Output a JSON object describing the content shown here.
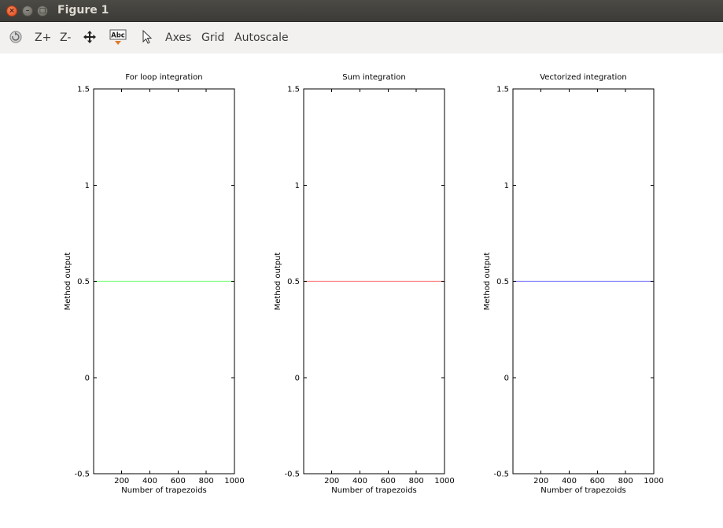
{
  "window": {
    "title": "Figure 1",
    "close_glyph": "×",
    "minimize_glyph": "–",
    "maximize_glyph": "□"
  },
  "toolbar": {
    "rotate_icon": "rotate-icon",
    "zoom_in_label": "Z+",
    "zoom_out_label": "Z-",
    "pan_icon": "pan-icon",
    "text_icon_label": "Abc",
    "select_icon": "pointer-icon",
    "axes_label": "Axes",
    "grid_label": "Grid",
    "autoscale_label": "Autoscale"
  },
  "chart_data": [
    {
      "type": "line",
      "title": "For loop integration",
      "xlabel": "Number of trapezoids",
      "ylabel": "Method output",
      "xlim": [
        1,
        1000
      ],
      "ylim": [
        -0.5,
        1.5
      ],
      "xticks": [
        200,
        400,
        600,
        800,
        1000
      ],
      "yticks": [
        -0.5,
        0,
        0.5,
        1,
        1.5
      ],
      "ytick_labels": [
        "-0.5",
        "0",
        "0.5",
        "1",
        "1.5"
      ],
      "grid": false,
      "series": [
        {
          "color": "#7fff7f",
          "x": [
            1,
            1000
          ],
          "y": [
            0.5,
            0.5
          ]
        }
      ]
    },
    {
      "type": "line",
      "title": "Sum integration",
      "xlabel": "Number of trapezoids",
      "ylabel": "Method output",
      "xlim": [
        1,
        1000
      ],
      "ylim": [
        -0.5,
        1.5
      ],
      "xticks": [
        200,
        400,
        600,
        800,
        1000
      ],
      "yticks": [
        -0.5,
        0,
        0.5,
        1,
        1.5
      ],
      "ytick_labels": [
        "-0.5",
        "0",
        "0.5",
        "1",
        "1.5"
      ],
      "grid": false,
      "series": [
        {
          "color": "#ff7f7f",
          "x": [
            1,
            1000
          ],
          "y": [
            0.5,
            0.5
          ]
        }
      ]
    },
    {
      "type": "line",
      "title": "Vectorized integration",
      "xlabel": "Number of trapezoids",
      "ylabel": "Method output",
      "xlim": [
        1,
        1000
      ],
      "ylim": [
        -0.5,
        1.5
      ],
      "xticks": [
        200,
        400,
        600,
        800,
        1000
      ],
      "yticks": [
        -0.5,
        0,
        0.5,
        1,
        1.5
      ],
      "ytick_labels": [
        "-0.5",
        "0",
        "0.5",
        "1",
        "1.5"
      ],
      "grid": false,
      "series": [
        {
          "color": "#7f7fff",
          "x": [
            1,
            1000
          ],
          "y": [
            0.5,
            0.5
          ]
        }
      ]
    }
  ]
}
